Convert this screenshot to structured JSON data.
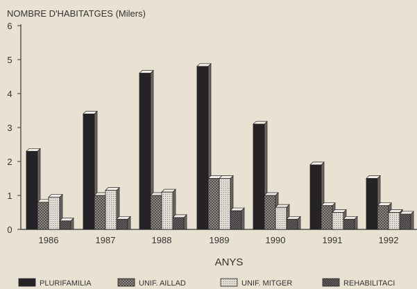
{
  "chart_data": {
    "type": "bar",
    "title": "NOMBRE D'HABITATGES (Milers)",
    "xlabel": "ANYS",
    "ylabel": "",
    "ylim": [
      0,
      6
    ],
    "yticks": [
      "0",
      "1",
      "2",
      "3",
      "4",
      "5",
      "6"
    ],
    "grid": false,
    "legend": "bottom",
    "categories": [
      "1986",
      "1987",
      "1988",
      "1989",
      "1990",
      "1991",
      "1992"
    ],
    "series": [
      {
        "name": "PLURIFAMILIA",
        "pattern": "dark-solid",
        "color": "#262326",
        "values": [
          2.3,
          3.4,
          4.6,
          4.8,
          3.1,
          1.9,
          1.5
        ]
      },
      {
        "name": "UNIF. AILLAD",
        "pattern": "crosshatch",
        "color": "#8a847d",
        "values": [
          0.8,
          1.0,
          1.0,
          1.5,
          1.0,
          0.7,
          0.7
        ]
      },
      {
        "name": "UNIF. MITGER",
        "pattern": "light-dots",
        "color": "#d6d0c6",
        "values": [
          0.95,
          1.15,
          1.1,
          1.5,
          0.65,
          0.5,
          0.5
        ]
      },
      {
        "name": "REHABILITACI",
        "pattern": "dark-hatch",
        "color": "#3e3a3b",
        "values": [
          0.25,
          0.3,
          0.35,
          0.55,
          0.3,
          0.3,
          0.45
        ]
      }
    ]
  }
}
